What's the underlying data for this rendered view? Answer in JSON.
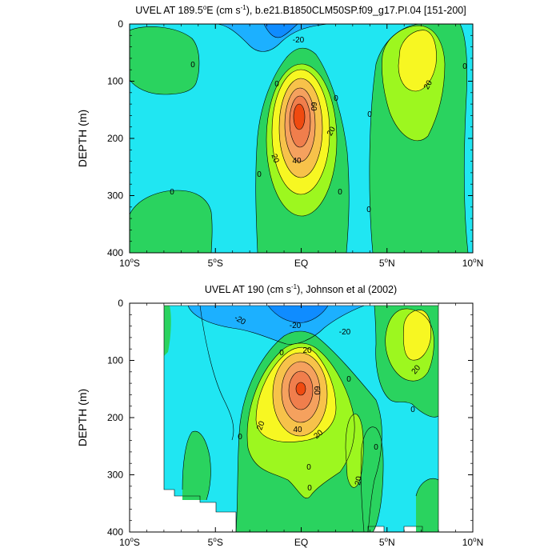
{
  "colors": {
    "c_lt_m40": "#0f8cff",
    "c_m40_m20": "#1cb0ff",
    "c_m20_0": "#20e6f2",
    "c_0_20": "#2ad35f",
    "c_20_40": "#9df71f",
    "c_40_60": "#f7f722",
    "c_60_80": "#f7c24a",
    "c_80_100": "#f5a15e",
    "c_100_120": "#f07e4c",
    "c_gt_120": "#f04a10",
    "line": "#000000"
  },
  "chart_data": [
    {
      "type": "heatmap",
      "title": "UVEL AT 189.5°E (cm s⁻¹), b.e21.B1850CLM50SP.f09_g17.PI.04 [151-200]",
      "title_main": "UVEL AT 189.5",
      "title_deg": "o",
      "title_after_deg": "E (cm s",
      "title_sup": "-1",
      "title_rest": "), b.e21.B1850CLM50SP.f09_g17.PI.04 [151-200]",
      "ylabel": "DEPTH (m)",
      "xlim": [
        -10,
        10
      ],
      "ylim": [
        400,
        0
      ],
      "xticks": [
        {
          "v": -10,
          "label": "10",
          "deg": "o",
          "dir": "S"
        },
        {
          "v": -5,
          "label": "5",
          "deg": "o",
          "dir": "S"
        },
        {
          "v": 0,
          "label": "EQ",
          "deg": "",
          "dir": ""
        },
        {
          "v": 5,
          "label": "5",
          "deg": "o",
          "dir": "N"
        },
        {
          "v": 10,
          "label": "10",
          "deg": "o",
          "dir": "N"
        }
      ],
      "yticks": [
        0,
        100,
        200,
        300,
        400
      ],
      "contour_labels": [
        "-20",
        "0",
        "0",
        "0",
        "0",
        "0",
        "0",
        "0",
        "0",
        "20",
        "20",
        "20",
        "40",
        "60",
        "0"
      ],
      "features": {
        "euc_core_lon": 0,
        "euc_core_depth_m": 155,
        "euc_core_max": 130,
        "nECC_lon": 6.8,
        "nECC_depth_m": 75,
        "nECC_max": 30,
        "sec_surface_min": -40
      }
    },
    {
      "type": "heatmap",
      "title": "UVEL AT 190 (cm s⁻¹), Johnson et al (2002)",
      "title_main": "UVEL AT 190 (cm s",
      "title_sup": "-1",
      "title_rest": "), Johnson et al (2002)",
      "ylabel": "DEPTH (m)",
      "xlim": [
        -10,
        10
      ],
      "ylim": [
        400,
        0
      ],
      "xticks": [
        {
          "v": -10,
          "label": "10",
          "deg": "o",
          "dir": "S"
        },
        {
          "v": -5,
          "label": "5",
          "deg": "o",
          "dir": "S"
        },
        {
          "v": 0,
          "label": "EQ",
          "deg": "",
          "dir": ""
        },
        {
          "v": 5,
          "label": "5",
          "deg": "o",
          "dir": "N"
        },
        {
          "v": 10,
          "label": "10",
          "deg": "o",
          "dir": "N"
        }
      ],
      "yticks": [
        0,
        100,
        200,
        300,
        400
      ],
      "contour_labels": [
        "-20",
        "-20",
        "-20",
        "20",
        "0",
        "0",
        "0",
        "0",
        "0",
        "0",
        "20",
        "20",
        "20",
        "20",
        "40",
        "60",
        "0"
      ],
      "data_lon_range": [
        -8,
        8
      ],
      "features": {
        "euc_core_lon": 0,
        "euc_core_depth_m": 150,
        "euc_core_max": 130,
        "nECC_lon": 6.8,
        "nECC_depth_m": 70,
        "nECC_max": 30,
        "sec_surface_min": -40
      }
    }
  ]
}
